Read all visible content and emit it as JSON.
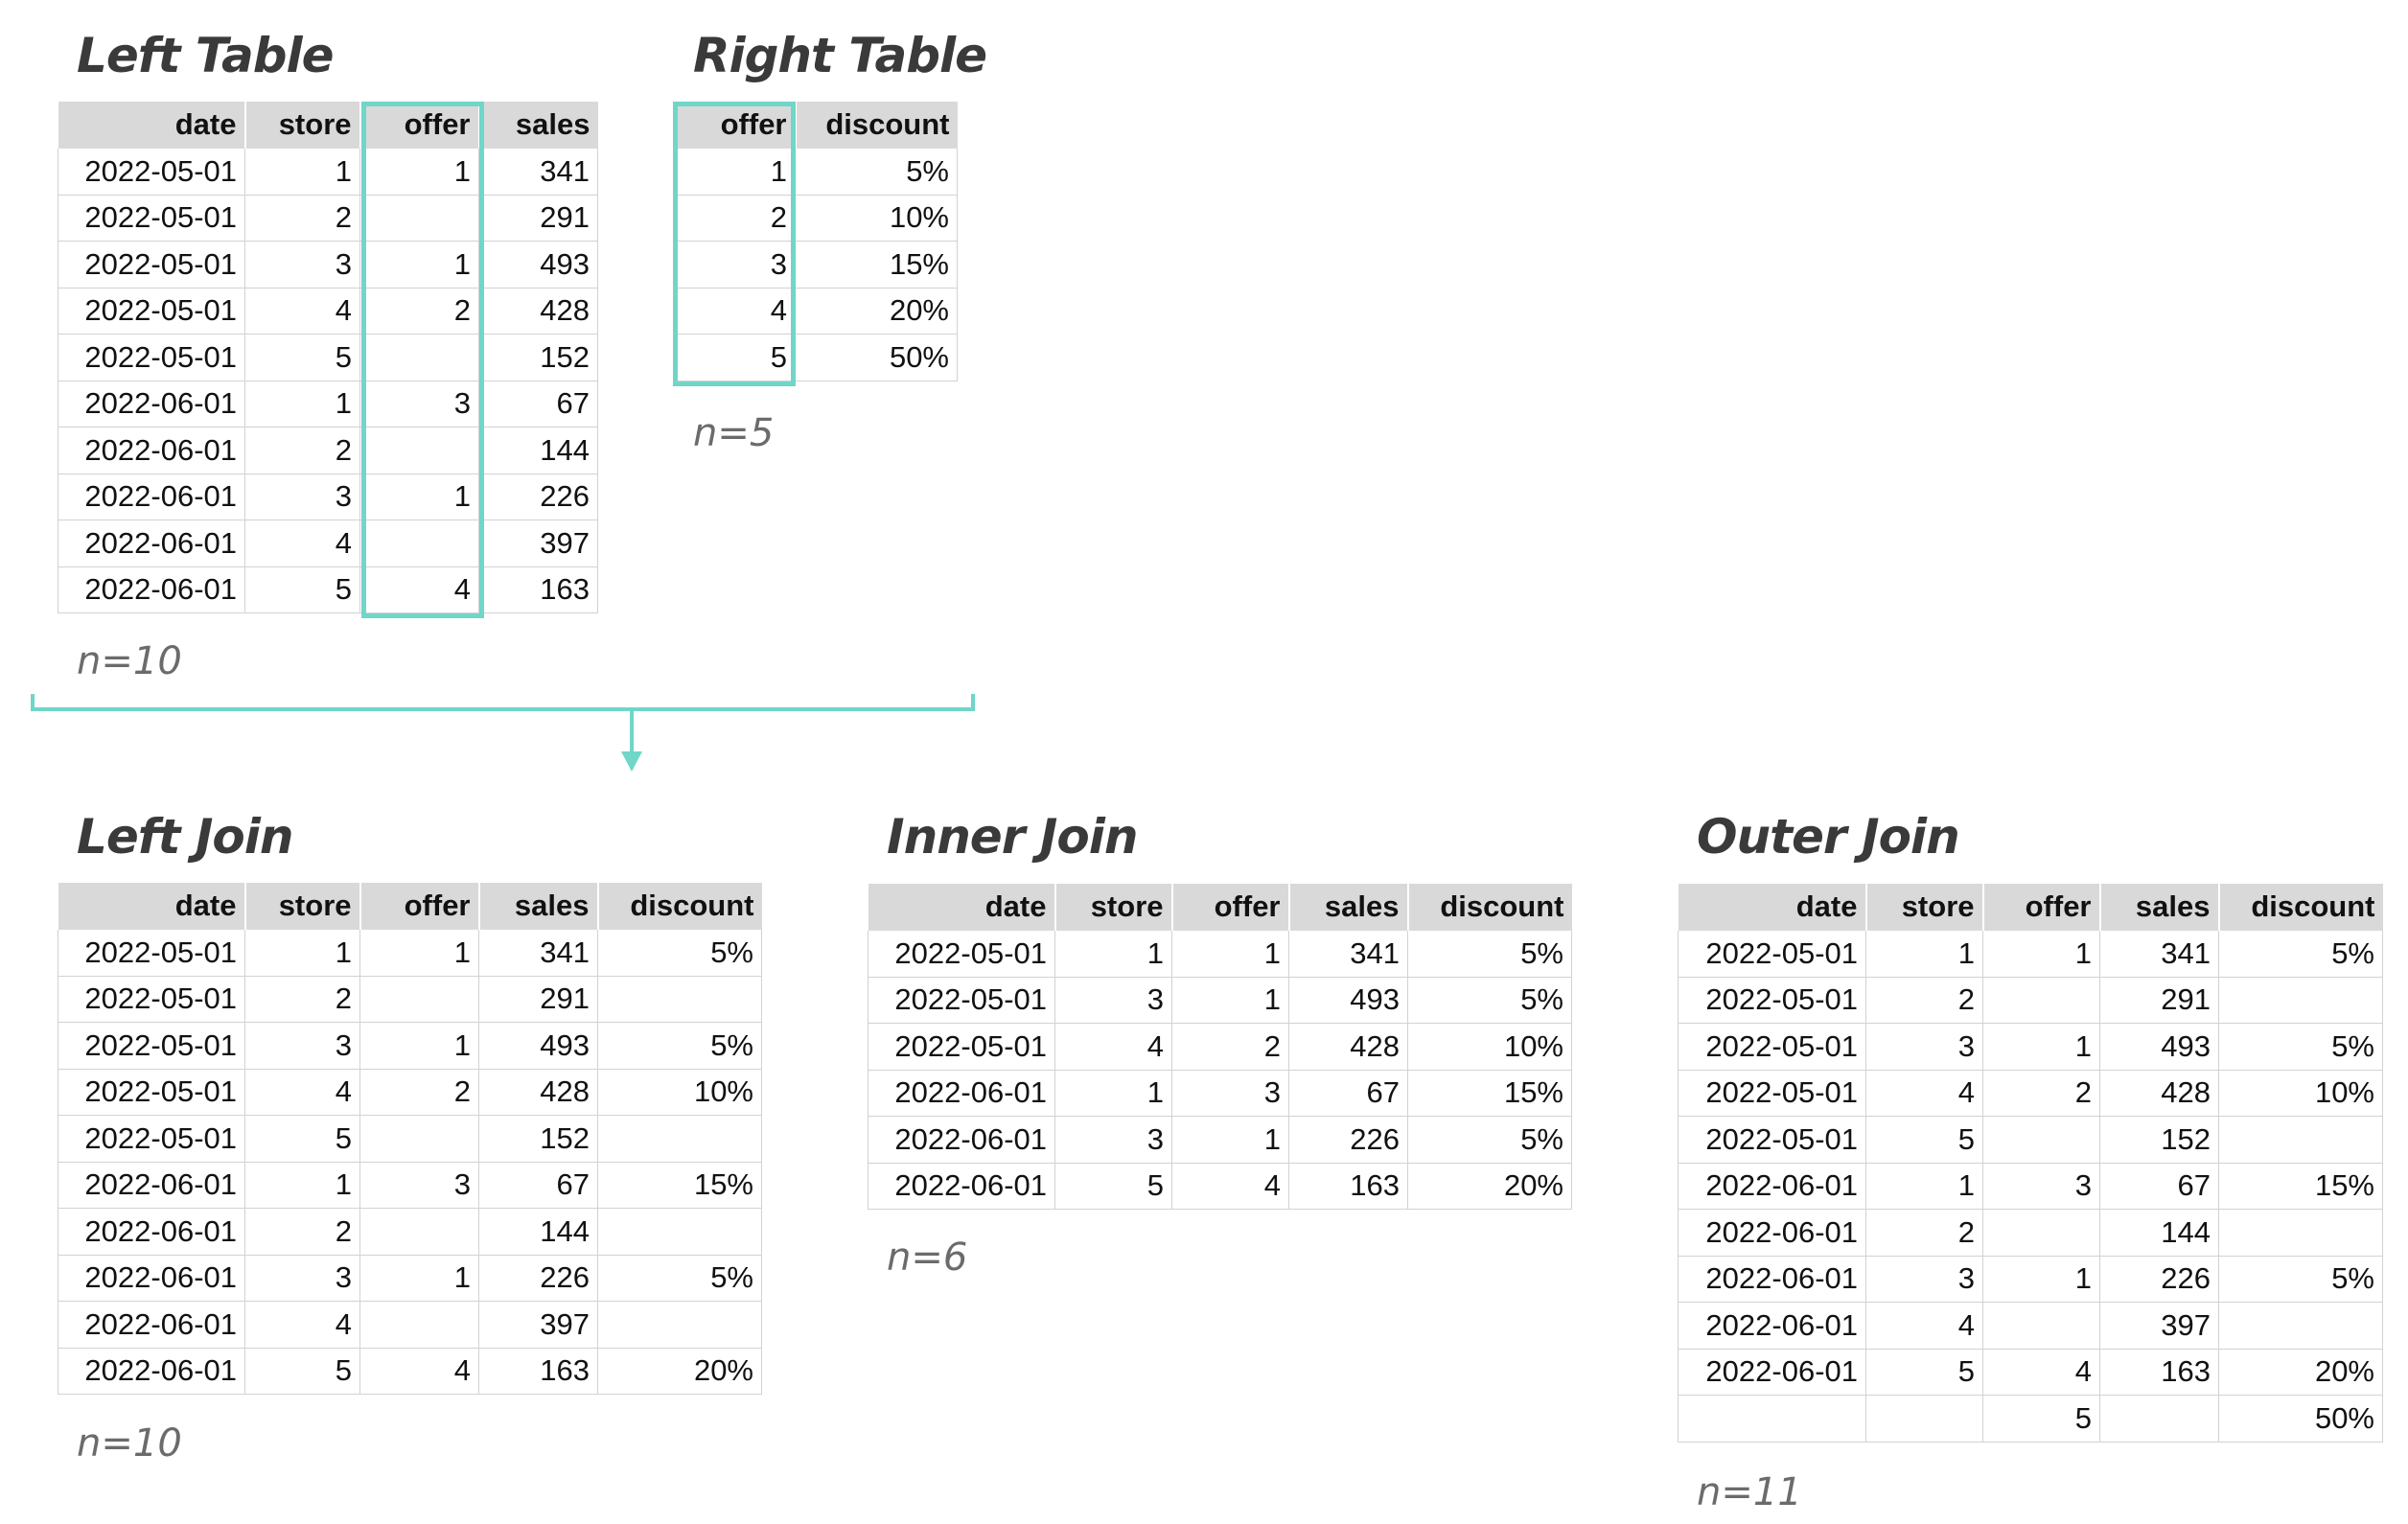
{
  "left_table": {
    "title": "Left Table",
    "columns": [
      "date",
      "store",
      "offer",
      "sales"
    ],
    "rows": [
      [
        "2022-05-01",
        "1",
        "1",
        "341"
      ],
      [
        "2022-05-01",
        "2",
        "",
        "291"
      ],
      [
        "2022-05-01",
        "3",
        "1",
        "493"
      ],
      [
        "2022-05-01",
        "4",
        "2",
        "428"
      ],
      [
        "2022-05-01",
        "5",
        "",
        "152"
      ],
      [
        "2022-06-01",
        "1",
        "3",
        "67"
      ],
      [
        "2022-06-01",
        "2",
        "",
        "144"
      ],
      [
        "2022-06-01",
        "3",
        "1",
        "226"
      ],
      [
        "2022-06-01",
        "4",
        "",
        "397"
      ],
      [
        "2022-06-01",
        "5",
        "4",
        "163"
      ]
    ],
    "count": "n=10"
  },
  "right_table": {
    "title": "Right Table",
    "columns": [
      "offer",
      "discount"
    ],
    "rows": [
      [
        "1",
        "5%"
      ],
      [
        "2",
        "10%"
      ],
      [
        "3",
        "15%"
      ],
      [
        "4",
        "20%"
      ],
      [
        "5",
        "50%"
      ]
    ],
    "count": "n=5"
  },
  "left_join": {
    "title": "Left Join",
    "columns": [
      "date",
      "store",
      "offer",
      "sales",
      "discount"
    ],
    "rows": [
      [
        "2022-05-01",
        "1",
        "1",
        "341",
        "5%"
      ],
      [
        "2022-05-01",
        "2",
        "",
        "291",
        ""
      ],
      [
        "2022-05-01",
        "3",
        "1",
        "493",
        "5%"
      ],
      [
        "2022-05-01",
        "4",
        "2",
        "428",
        "10%"
      ],
      [
        "2022-05-01",
        "5",
        "",
        "152",
        ""
      ],
      [
        "2022-06-01",
        "1",
        "3",
        "67",
        "15%"
      ],
      [
        "2022-06-01",
        "2",
        "",
        "144",
        ""
      ],
      [
        "2022-06-01",
        "3",
        "1",
        "226",
        "5%"
      ],
      [
        "2022-06-01",
        "4",
        "",
        "397",
        ""
      ],
      [
        "2022-06-01",
        "5",
        "4",
        "163",
        "20%"
      ]
    ],
    "count": "n=10"
  },
  "inner_join": {
    "title": "Inner Join",
    "columns": [
      "date",
      "store",
      "offer",
      "sales",
      "discount"
    ],
    "rows": [
      [
        "2022-05-01",
        "1",
        "1",
        "341",
        "5%"
      ],
      [
        "2022-05-01",
        "3",
        "1",
        "493",
        "5%"
      ],
      [
        "2022-05-01",
        "4",
        "2",
        "428",
        "10%"
      ],
      [
        "2022-06-01",
        "1",
        "3",
        "67",
        "15%"
      ],
      [
        "2022-06-01",
        "3",
        "1",
        "226",
        "5%"
      ],
      [
        "2022-06-01",
        "5",
        "4",
        "163",
        "20%"
      ]
    ],
    "count": "n=6"
  },
  "outer_join": {
    "title": "Outer Join",
    "columns": [
      "date",
      "store",
      "offer",
      "sales",
      "discount"
    ],
    "rows": [
      [
        "2022-05-01",
        "1",
        "1",
        "341",
        "5%"
      ],
      [
        "2022-05-01",
        "2",
        "",
        "291",
        ""
      ],
      [
        "2022-05-01",
        "3",
        "1",
        "493",
        "5%"
      ],
      [
        "2022-05-01",
        "4",
        "2",
        "428",
        "10%"
      ],
      [
        "2022-05-01",
        "5",
        "",
        "152",
        ""
      ],
      [
        "2022-06-01",
        "1",
        "3",
        "67",
        "15%"
      ],
      [
        "2022-06-01",
        "2",
        "",
        "144",
        ""
      ],
      [
        "2022-06-01",
        "3",
        "1",
        "226",
        "5%"
      ],
      [
        "2022-06-01",
        "4",
        "",
        "397",
        ""
      ],
      [
        "2022-06-01",
        "5",
        "4",
        "163",
        "20%"
      ],
      [
        "",
        "",
        "5",
        "",
        "50%"
      ]
    ],
    "count": "n=11"
  },
  "colors": {
    "accent": "#6fd6c8",
    "header_bg": "#d9d9d9",
    "grid": "#d2d2d2",
    "title_text": "#3a3a3a",
    "count_text": "#6b6b6b"
  }
}
